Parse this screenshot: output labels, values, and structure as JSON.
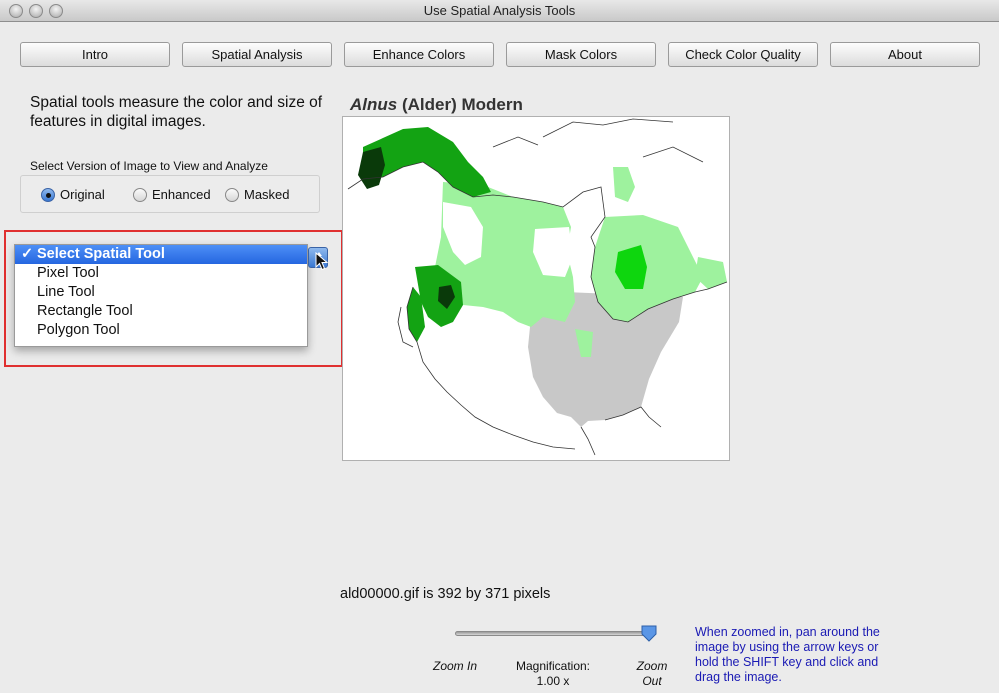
{
  "window": {
    "title": "Use Spatial Analysis Tools"
  },
  "nav": [
    "Intro",
    "Spatial Analysis",
    "Enhance Colors",
    "Mask Colors",
    "Check Color Quality",
    "About"
  ],
  "intro_text": "Spatial tools measure the color and size of features in digital images.",
  "version_group": {
    "label": "Select Version of Image to View and Analyze",
    "options": [
      "Original",
      "Enhanced",
      "Masked"
    ],
    "selected": "Original"
  },
  "tool_dropdown": {
    "check": "✓",
    "options": [
      "Select Spatial Tool",
      "Pixel Tool",
      "Line Tool",
      "Rectangle Tool",
      "Polygon Tool"
    ],
    "selected": "Select Spatial Tool"
  },
  "map": {
    "title_genus": "Alnus",
    "title_rest": " (Alder) Modern",
    "colors": {
      "dark": "#0a3a0a",
      "mid": "#13a313",
      "bright": "#0ed60e",
      "light": "#9ef29e",
      "gray": "#c8c8c8"
    }
  },
  "image_info": "ald00000.gif is 392 by 371 pixels",
  "zoom": {
    "zoom_in": "Zoom In",
    "zoom_out": "Zoom Out",
    "magnification_label": "Magnification:",
    "magnification_value": "1.00 x",
    "slider_fraction": 1.0,
    "help": "When zoomed in, pan around the image by using the arrow keys or hold the SHIFT key and click and drag the image."
  }
}
